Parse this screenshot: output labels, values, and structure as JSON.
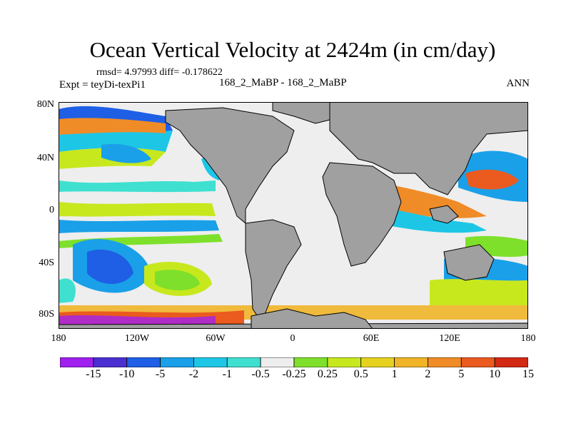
{
  "title": "Ocean Vertical Velocity at 2424m (in cm/day)",
  "stats": "rmsd= 4.97993 diff= -0.178622",
  "expt": "Expt = teyDi-texPi1",
  "case": "168_2_MaBP - 168_2_MaBP",
  "season": "ANN",
  "lat_labels": [
    "80N",
    "40N",
    "0",
    "40S",
    "80S"
  ],
  "lon_labels": [
    "180",
    "120W",
    "60W",
    "0",
    "60E",
    "120E",
    "180"
  ],
  "colorbar": {
    "colors": [
      "#a020f0",
      "#4b2fd0",
      "#1e5fe6",
      "#1aa0e8",
      "#1ec6e6",
      "#3fe0d0",
      "#eeeeee",
      "#7ee02a",
      "#c8e81e",
      "#e6d21e",
      "#f0b428",
      "#f08c28",
      "#eb5a1e",
      "#d22814"
    ],
    "labels": [
      "-15",
      "-10",
      "-5",
      "-2",
      "-1",
      "-0.5",
      "-0.25",
      "0.25",
      "0.5",
      "1",
      "2",
      "5",
      "10",
      "15"
    ]
  },
  "colors": {
    "land": "#a0a0a0",
    "coast": "#000000",
    "background": "#ffffff"
  }
}
